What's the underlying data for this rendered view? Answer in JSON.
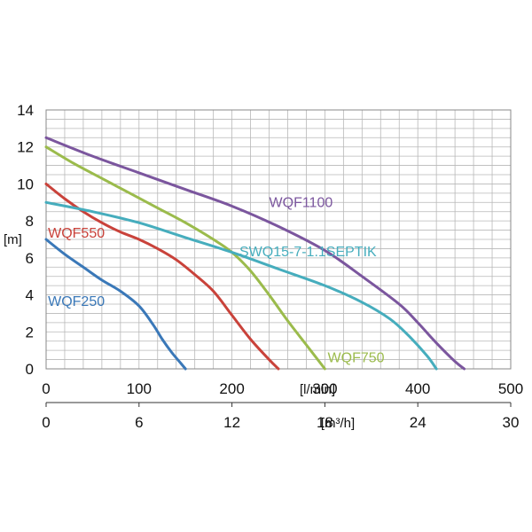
{
  "chart_data": {
    "type": "line",
    "title": "",
    "ylabel": "[m]",
    "xlabel": "[l/min]",
    "xlabel_secondary": "[m³/h]",
    "xlim": [
      0,
      500
    ],
    "ylim": [
      0,
      14
    ],
    "x_ticks": [
      0,
      100,
      200,
      300,
      400,
      500
    ],
    "y_ticks": [
      0,
      2,
      4,
      6,
      8,
      10,
      12,
      14
    ],
    "secondary_x_ticks": [
      "0",
      "6",
      "12",
      "18",
      "24",
      "30"
    ],
    "grid": true,
    "legend": "inline labels",
    "series": [
      {
        "name": "WQF250",
        "color": "#3a78b8",
        "x": [
          0,
          20,
          40,
          60,
          80,
          100,
          115,
          125,
          135,
          145,
          150
        ],
        "y": [
          7.0,
          6.2,
          5.5,
          4.8,
          4.2,
          3.4,
          2.4,
          1.6,
          0.9,
          0.3,
          0.0
        ]
      },
      {
        "name": "WQF550",
        "color": "#c9423a",
        "x": [
          0,
          20,
          40,
          60,
          80,
          100,
          120,
          140,
          160,
          180,
          200,
          220,
          240,
          250
        ],
        "y": [
          10.0,
          9.2,
          8.5,
          7.9,
          7.4,
          7.0,
          6.5,
          5.9,
          5.1,
          4.2,
          2.9,
          1.6,
          0.5,
          0.0
        ]
      },
      {
        "name": "WQF750",
        "color": "#9bbb4c",
        "x": [
          0,
          30,
          60,
          90,
          120,
          150,
          180,
          200,
          220,
          240,
          260,
          280,
          300
        ],
        "y": [
          12.0,
          11.1,
          10.3,
          9.5,
          8.7,
          7.9,
          7.0,
          6.3,
          5.3,
          4.0,
          2.6,
          1.3,
          0.0
        ]
      },
      {
        "name": "WQF1100",
        "color": "#7b569e",
        "x": [
          0,
          50,
          100,
          150,
          200,
          250,
          300,
          340,
          380,
          400,
          420,
          440,
          450
        ],
        "y": [
          12.5,
          11.5,
          10.6,
          9.7,
          8.8,
          7.7,
          6.4,
          5.0,
          3.5,
          2.5,
          1.4,
          0.4,
          0.0
        ]
      },
      {
        "name": "SWQ15-7-1.1SEPTIK",
        "color": "#46adbd",
        "x": [
          0,
          50,
          100,
          150,
          200,
          250,
          300,
          340,
          370,
          390,
          410,
          420
        ],
        "y": [
          9.0,
          8.5,
          7.9,
          7.1,
          6.3,
          5.4,
          4.5,
          3.6,
          2.7,
          1.8,
          0.7,
          0.0
        ]
      }
    ],
    "series_label_colors": {
      "WQF250": "#3a78b8",
      "WQF550": "#c9423a",
      "WQF750": "#9bbb4c",
      "WQF1100": "#7b569e",
      "SWQ15-7-1.1SEPTIK": "#46adbd"
    }
  }
}
